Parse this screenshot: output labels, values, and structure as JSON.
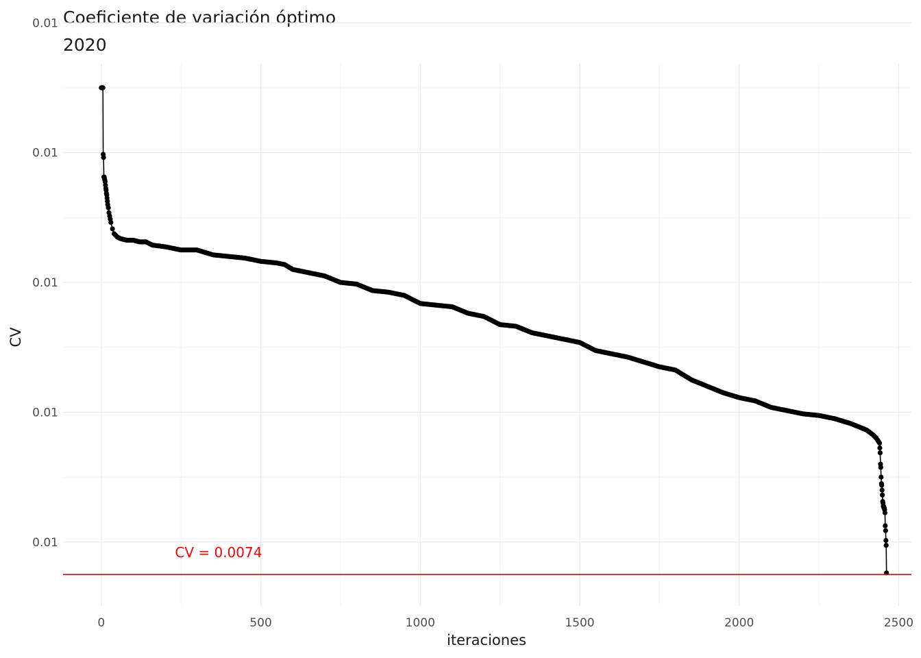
{
  "chart_data": {
    "type": "line",
    "title": "Coeficiente de variación óptimo",
    "subtitle": "2020",
    "xlabel": "iteraciones",
    "ylabel": "CV",
    "xlim": [
      -120,
      2540
    ],
    "ylim": [
      0.00735,
      0.0104
    ],
    "grid": true,
    "legend": "none",
    "x_ticks": [
      0,
      500,
      1000,
      1500,
      2000,
      2500
    ],
    "x_tick_labels": [
      "0",
      "500",
      "1000",
      "1500",
      "2000",
      "2500"
    ],
    "y_ticks": [
      0.0076,
      0.0084,
      0.0092,
      0.01,
      0.0108
    ],
    "y_tick_labels": [
      "0.01",
      "0.01",
      "0.01",
      "0.01",
      "0.01"
    ],
    "series": [
      {
        "color": "#000000",
        "markers": "points",
        "x": [
          0,
          1,
          2,
          3,
          4,
          5,
          6,
          7,
          8,
          9,
          10,
          11,
          12,
          13,
          14,
          15,
          16,
          17,
          18,
          19,
          20,
          22,
          24,
          26,
          28,
          30,
          35,
          40,
          50,
          60,
          80,
          100,
          120,
          140,
          160,
          200,
          250,
          300,
          350,
          400,
          450,
          500,
          550,
          575,
          600,
          650,
          700,
          750,
          800,
          850,
          900,
          950,
          1000,
          1050,
          1100,
          1150,
          1200,
          1250,
          1300,
          1350,
          1400,
          1450,
          1500,
          1550,
          1600,
          1650,
          1700,
          1750,
          1800,
          1850,
          1900,
          1950,
          2000,
          2050,
          2100,
          2150,
          2200,
          2250,
          2300,
          2350,
          2400,
          2420,
          2430,
          2440,
          2441,
          2442,
          2443,
          2444,
          2445,
          2446,
          2447,
          2448,
          2449,
          2450,
          2451,
          2452,
          2453,
          2454,
          2455,
          2456,
          2457,
          2458,
          2459,
          2460,
          2461,
          2462
        ],
        "y": [
          0.0104,
          0.0104,
          0.0104,
          0.0104,
          0.0104,
          0.0104,
          0.00999,
          0.00997,
          0.00985,
          0.00985,
          0.00984,
          0.00983,
          0.00982,
          0.0098,
          0.00978,
          0.00977,
          0.00975,
          0.00974,
          0.00972,
          0.0097,
          0.00968,
          0.00966,
          0.00963,
          0.00961,
          0.00959,
          0.00957,
          0.00953,
          0.0095,
          0.00948,
          0.00947,
          0.00946,
          0.00946,
          0.00945,
          0.00945,
          0.00943,
          0.00942,
          0.0094,
          0.0094,
          0.00937,
          0.00936,
          0.00935,
          0.00933,
          0.00932,
          0.00931,
          0.00928,
          0.00926,
          0.00924,
          0.0092,
          0.00919,
          0.00915,
          0.00914,
          0.00912,
          0.00907,
          0.00906,
          0.00905,
          0.00901,
          0.00899,
          0.00894,
          0.00893,
          0.00889,
          0.00887,
          0.00885,
          0.00883,
          0.00878,
          0.00876,
          0.00874,
          0.00871,
          0.00868,
          0.00866,
          0.0086,
          0.00856,
          0.00852,
          0.00849,
          0.00847,
          0.00843,
          0.00841,
          0.00839,
          0.00838,
          0.00836,
          0.00833,
          0.00829,
          0.00826,
          0.00824,
          0.00821,
          0.00818,
          0.00815,
          0.00808,
          0.00806,
          0.008,
          0.00796,
          0.00795,
          0.00792,
          0.00789,
          0.00785,
          0.00784,
          0.00782,
          0.00782,
          0.00781,
          0.00781,
          0.0078,
          0.00778,
          0.0077,
          0.00767,
          0.00761,
          0.00758,
          0.00741
        ]
      }
    ],
    "hline": {
      "y": 0.0074,
      "color": "#ff0000"
    },
    "annotations": [
      {
        "text": "CV = 0.0074",
        "x": 650,
        "y": 0.00751,
        "color": "#ff0000"
      }
    ]
  }
}
